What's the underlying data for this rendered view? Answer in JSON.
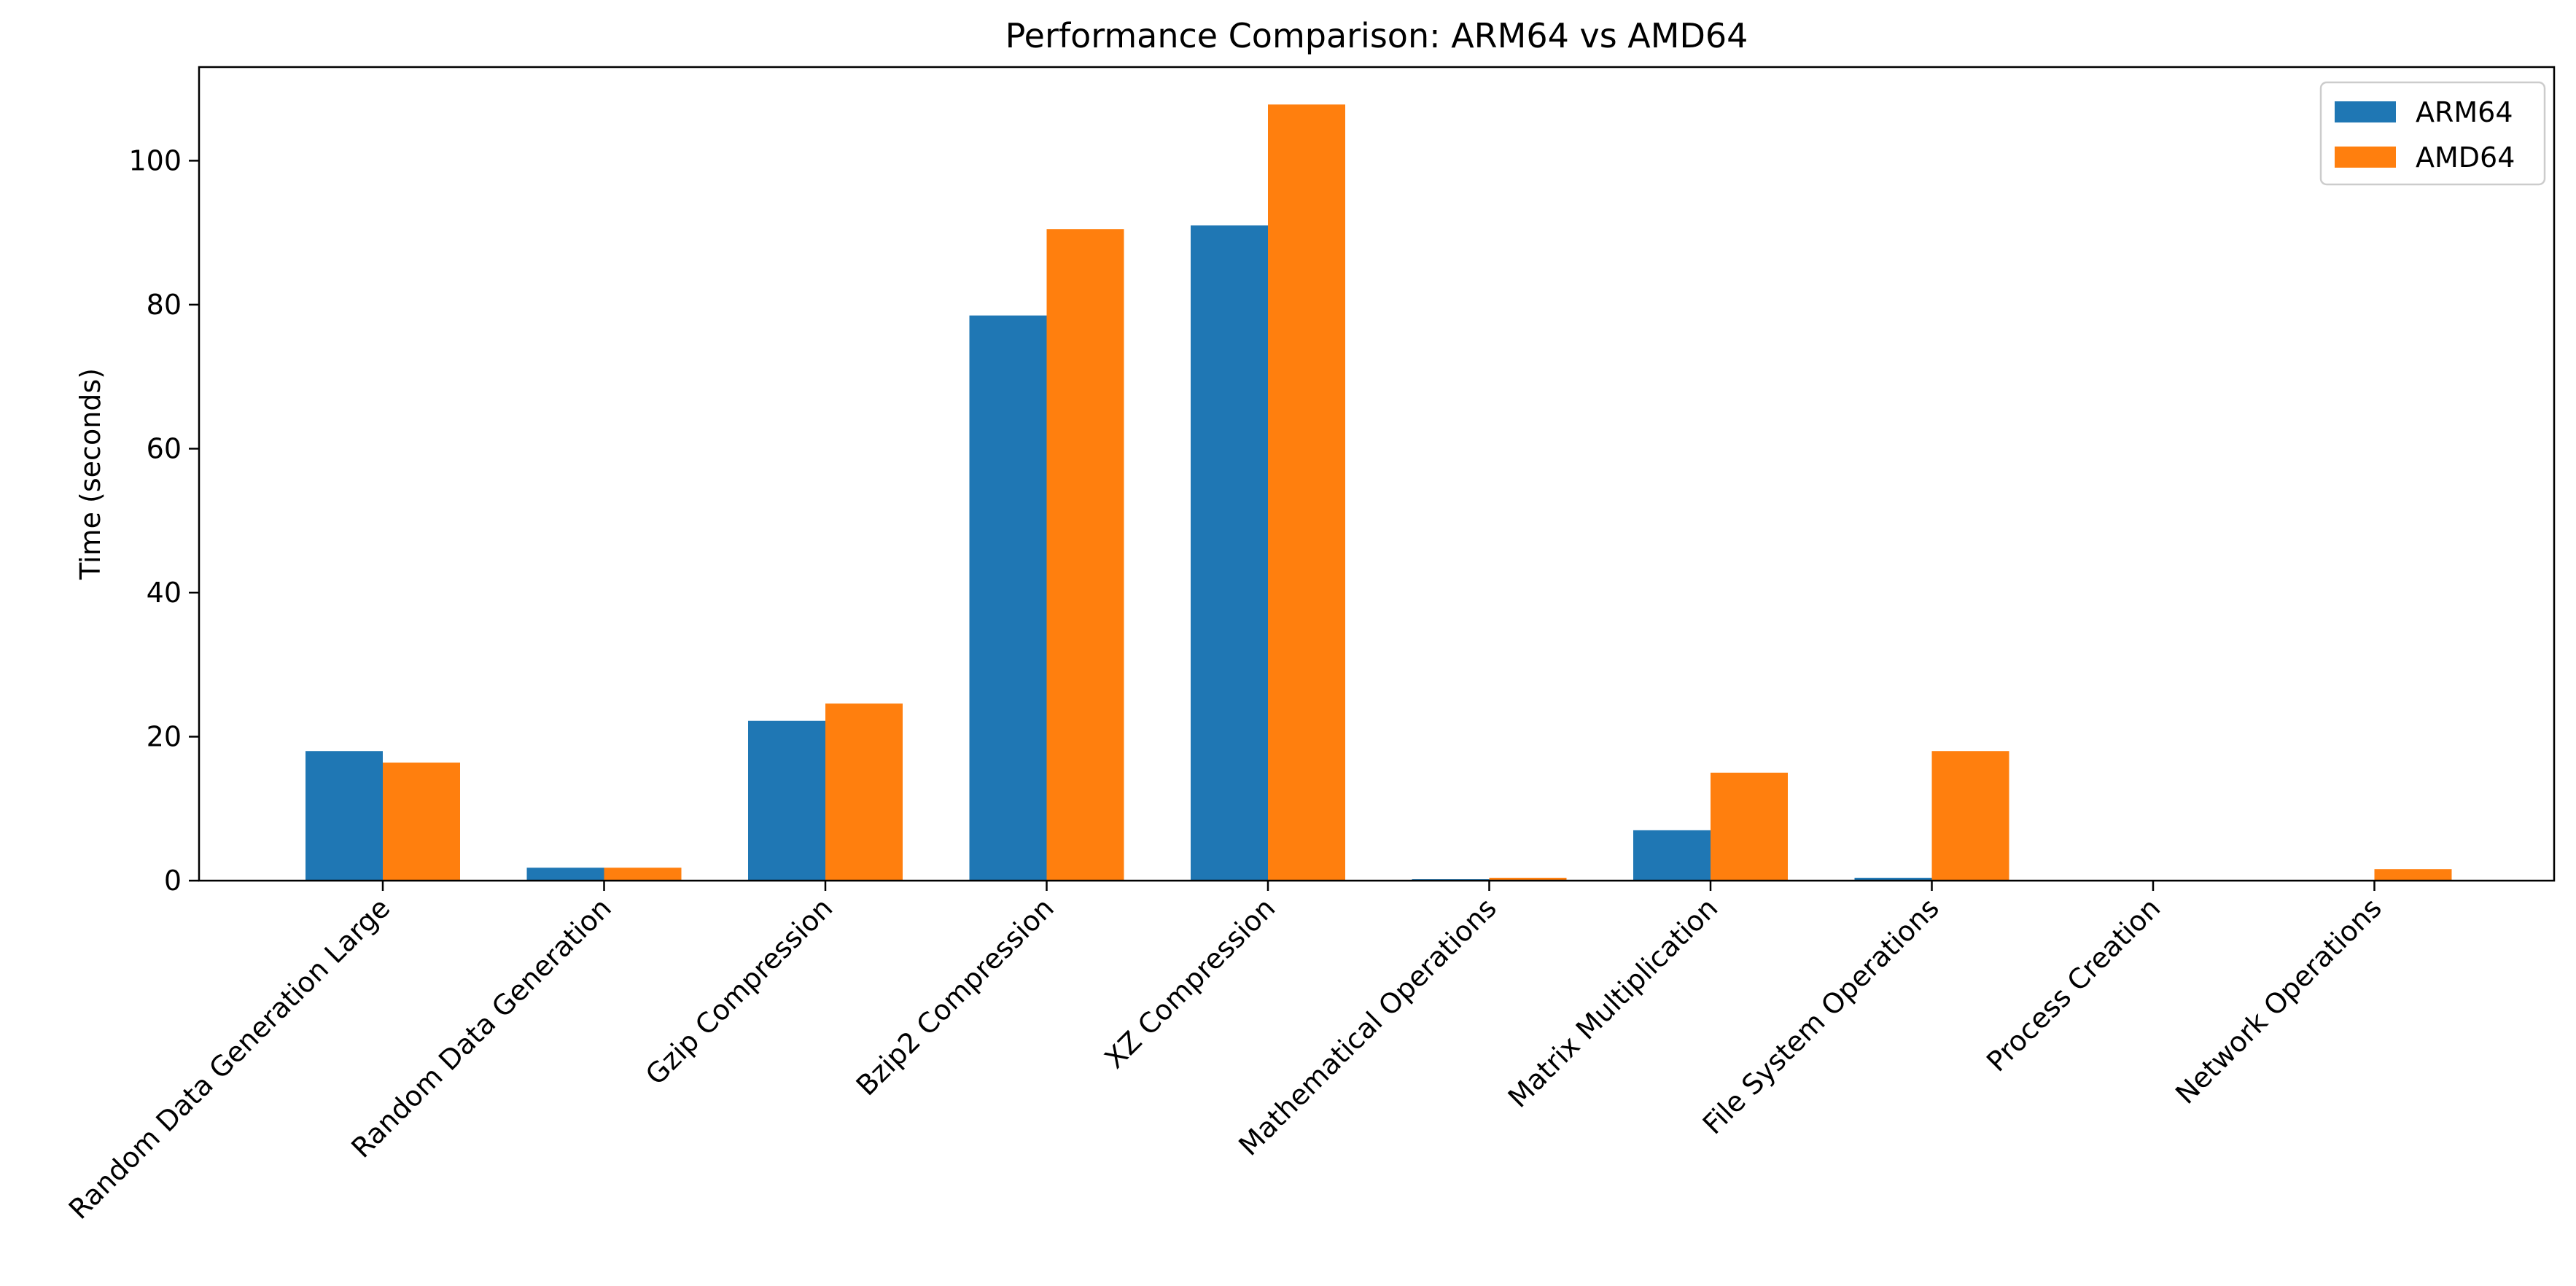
{
  "chart_data": {
    "type": "bar",
    "title": "Performance Comparison: ARM64 vs AMD64",
    "xlabel": "",
    "ylabel": "Time (seconds)",
    "ylim": [
      0,
      113
    ],
    "yticks": [
      0,
      20,
      40,
      60,
      80,
      100
    ],
    "grid": false,
    "legend_position": "top-right",
    "categories": [
      "Random Data Generation Large",
      "Random Data Generation",
      "Gzip Compression",
      "Bzip2 Compression",
      "XZ Compression",
      "Mathematical Operations",
      "Matrix Multiplication",
      "File System Operations",
      "Process Creation",
      "Network Operations"
    ],
    "series": [
      {
        "name": "ARM64",
        "color": "#1f77b4",
        "values": [
          18.0,
          1.8,
          22.2,
          78.5,
          91.0,
          0.2,
          7.0,
          0.4,
          0.0,
          0.0
        ]
      },
      {
        "name": "AMD64",
        "color": "#ff7f0e",
        "values": [
          16.4,
          1.8,
          24.6,
          90.5,
          107.8,
          0.4,
          15.0,
          18.0,
          0.0,
          1.6
        ]
      }
    ]
  }
}
